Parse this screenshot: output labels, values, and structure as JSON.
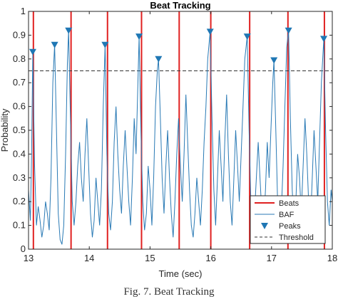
{
  "caption": "Fig. 7. Beat Tracking",
  "chart_data": {
    "type": "line",
    "title": "Beat Tracking",
    "xlabel": "Time (sec)",
    "ylabel": "Probability",
    "xlim": [
      13,
      18
    ],
    "ylim": [
      0,
      1
    ],
    "xticks": [
      "13",
      "14",
      "15",
      "16",
      "17",
      "18"
    ],
    "yticks": [
      "0",
      "0.1",
      "0.2",
      "0.3",
      "0.4",
      "0.5",
      "0.6",
      "0.7",
      "0.8",
      "0.9",
      "1"
    ],
    "threshold": 0.75,
    "beats": [
      13.08,
      13.7,
      14.3,
      14.86,
      15.48,
      16.0,
      16.64,
      17.27,
      17.87
    ],
    "peaks": [
      {
        "x": 13.07,
        "y": 0.83
      },
      {
        "x": 13.43,
        "y": 0.86
      },
      {
        "x": 13.66,
        "y": 0.92
      },
      {
        "x": 14.26,
        "y": 0.86
      },
      {
        "x": 14.82,
        "y": 0.895
      },
      {
        "x": 15.14,
        "y": 0.8
      },
      {
        "x": 15.99,
        "y": 0.915
      },
      {
        "x": 16.6,
        "y": 0.895
      },
      {
        "x": 17.04,
        "y": 0.795
      },
      {
        "x": 17.28,
        "y": 0.92
      },
      {
        "x": 17.86,
        "y": 0.885
      }
    ],
    "series": [
      {
        "name": "BAF",
        "color": "#2a7ab5",
        "x": [
          13.0,
          13.03,
          13.05,
          13.07,
          13.1,
          13.13,
          13.16,
          13.19,
          13.22,
          13.25,
          13.28,
          13.31,
          13.34,
          13.37,
          13.4,
          13.43,
          13.46,
          13.49,
          13.52,
          13.55,
          13.58,
          13.61,
          13.64,
          13.66,
          13.69,
          13.72,
          13.75,
          13.78,
          13.81,
          13.84,
          13.87,
          13.9,
          13.93,
          13.96,
          13.99,
          14.02,
          14.05,
          14.08,
          14.11,
          14.14,
          14.17,
          14.2,
          14.23,
          14.26,
          14.29,
          14.32,
          14.35,
          14.38,
          14.41,
          14.44,
          14.47,
          14.5,
          14.53,
          14.56,
          14.59,
          14.62,
          14.65,
          14.68,
          14.71,
          14.74,
          14.77,
          14.8,
          14.82,
          14.85,
          14.88,
          14.91,
          14.94,
          14.97,
          15.0,
          15.03,
          15.06,
          15.09,
          15.12,
          15.14,
          15.17,
          15.2,
          15.23,
          15.26,
          15.29,
          15.32,
          15.35,
          15.38,
          15.41,
          15.44,
          15.47,
          15.5,
          15.53,
          15.56,
          15.59,
          15.62,
          15.65,
          15.68,
          15.71,
          15.74,
          15.77,
          15.8,
          15.83,
          15.86,
          15.89,
          15.92,
          15.95,
          15.99,
          16.02,
          16.05,
          16.08,
          16.11,
          16.14,
          16.17,
          16.2,
          16.23,
          16.26,
          16.29,
          16.32,
          16.35,
          16.38,
          16.41,
          16.44,
          16.47,
          16.5,
          16.53,
          16.56,
          16.6,
          16.63,
          16.66,
          16.69,
          16.72,
          16.75,
          16.78,
          16.81,
          16.84,
          16.87,
          16.9,
          16.93,
          16.96,
          16.99,
          17.02,
          17.04,
          17.07,
          17.1,
          17.13,
          17.16,
          17.19,
          17.22,
          17.25,
          17.28,
          17.31,
          17.34,
          17.37,
          17.4,
          17.43,
          17.46,
          17.49,
          17.52,
          17.55,
          17.58,
          17.61,
          17.64,
          17.67,
          17.7,
          17.73,
          17.76,
          17.79,
          17.82,
          17.86,
          17.89,
          17.92,
          17.95,
          17.98,
          18.0
        ],
        "y": [
          0.25,
          0.12,
          0.4,
          0.83,
          0.35,
          0.1,
          0.18,
          0.12,
          0.05,
          0.1,
          0.2,
          0.15,
          0.08,
          0.3,
          0.7,
          0.86,
          0.5,
          0.15,
          0.04,
          0.02,
          0.1,
          0.4,
          0.78,
          0.92,
          0.55,
          0.2,
          0.1,
          0.2,
          0.35,
          0.45,
          0.3,
          0.2,
          0.4,
          0.55,
          0.35,
          0.15,
          0.05,
          0.12,
          0.3,
          0.2,
          0.1,
          0.25,
          0.6,
          0.86,
          0.4,
          0.15,
          0.08,
          0.2,
          0.45,
          0.6,
          0.4,
          0.25,
          0.15,
          0.35,
          0.5,
          0.35,
          0.2,
          0.1,
          0.3,
          0.55,
          0.4,
          0.7,
          0.895,
          0.5,
          0.2,
          0.08,
          0.15,
          0.35,
          0.25,
          0.1,
          0.3,
          0.6,
          0.75,
          0.8,
          0.55,
          0.3,
          0.15,
          0.35,
          0.5,
          0.3,
          0.15,
          0.05,
          0.2,
          0.4,
          0.55,
          0.35,
          0.2,
          0.4,
          0.65,
          0.45,
          0.25,
          0.1,
          0.05,
          0.15,
          0.3,
          0.2,
          0.1,
          0.25,
          0.45,
          0.6,
          0.8,
          0.915,
          0.55,
          0.25,
          0.1,
          0.3,
          0.5,
          0.35,
          0.2,
          0.45,
          0.65,
          0.4,
          0.2,
          0.1,
          0.3,
          0.5,
          0.35,
          0.2,
          0.4,
          0.6,
          0.8,
          0.895,
          0.5,
          0.2,
          0.08,
          0.15,
          0.3,
          0.45,
          0.3,
          0.15,
          0.1,
          0.25,
          0.45,
          0.3,
          0.5,
          0.7,
          0.795,
          0.5,
          0.2,
          0.08,
          0.15,
          0.35,
          0.6,
          0.85,
          0.92,
          0.55,
          0.25,
          0.1,
          0.2,
          0.4,
          0.3,
          0.15,
          0.35,
          0.55,
          0.4,
          0.2,
          0.1,
          0.3,
          0.5,
          0.35,
          0.2,
          0.45,
          0.7,
          0.885,
          0.5,
          0.2,
          0.1,
          0.25,
          0.2
        ]
      }
    ],
    "legend": {
      "placement": "bottom-right",
      "entries": [
        {
          "label": "Beats",
          "kind": "line",
          "color": "#e02020"
        },
        {
          "label": "BAF",
          "kind": "line",
          "color": "#2a7ab5"
        },
        {
          "label": "Peaks",
          "kind": "marker",
          "color": "#1f77b4"
        },
        {
          "label": "Threshold",
          "kind": "dashed",
          "color": "#333333"
        }
      ]
    },
    "grid": false
  }
}
